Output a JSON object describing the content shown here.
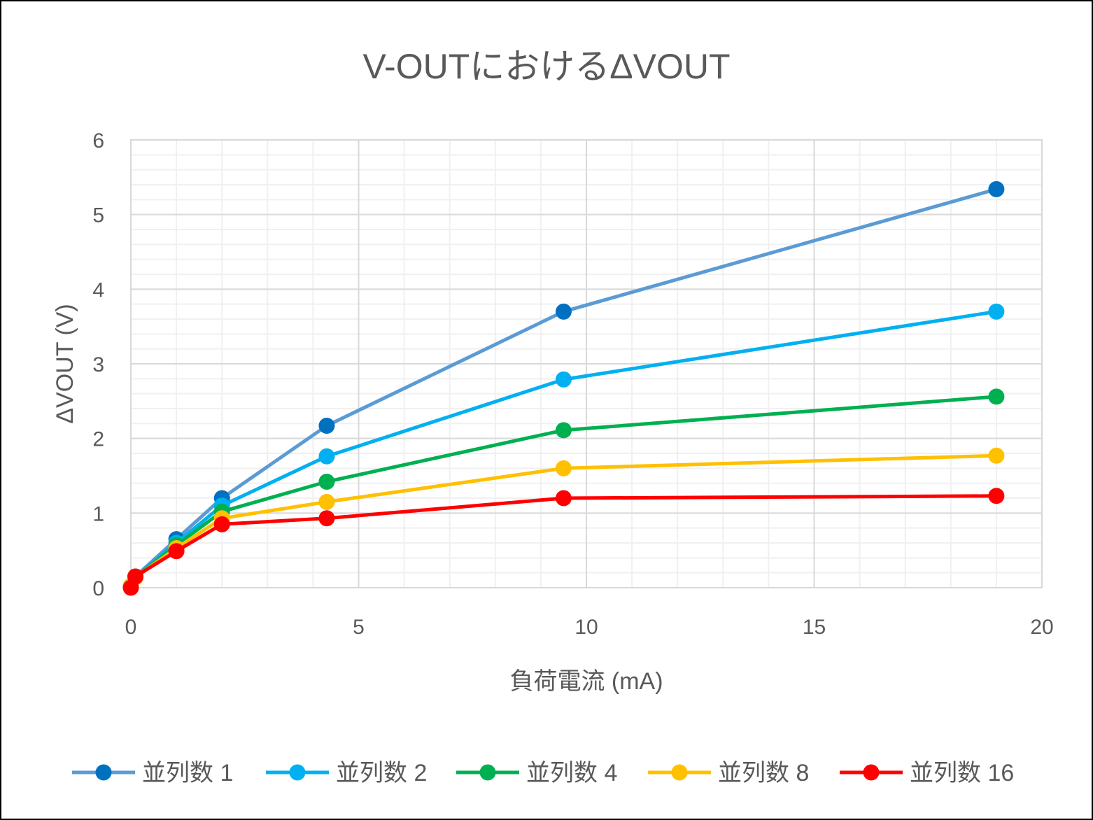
{
  "chart_data": {
    "type": "line",
    "title": "V-OUTにおけるΔVOUT",
    "xlabel": "負荷電流 (mA)",
    "ylabel": "ΔVOUT (V)",
    "xlim": [
      0,
      20
    ],
    "ylim": [
      0,
      6
    ],
    "x_ticks": [
      "0",
      "5",
      "10",
      "15",
      "20"
    ],
    "y_ticks": [
      "0",
      "1",
      "2",
      "3",
      "4",
      "5",
      "6"
    ],
    "grid": true,
    "legend_position": "bottom",
    "x": [
      0,
      0.1,
      1,
      2,
      4.3,
      9.5,
      19
    ],
    "series": [
      {
        "name": "並列数 1",
        "line_color": "#5B9BD5",
        "marker_color": "#0070C0",
        "values": [
          0.02,
          0.15,
          0.65,
          1.2,
          2.17,
          3.7,
          5.34
        ]
      },
      {
        "name": "並列数 2",
        "line_color": "#00B0F0",
        "marker_color": "#00B0F0",
        "values": [
          0.02,
          0.14,
          0.6,
          1.1,
          1.76,
          2.79,
          3.7
        ]
      },
      {
        "name": "並列数 4",
        "line_color": "#00B050",
        "marker_color": "#00B050",
        "values": [
          0.02,
          0.14,
          0.57,
          1.02,
          1.42,
          2.11,
          2.56
        ]
      },
      {
        "name": "並列数 8",
        "line_color": "#FFC000",
        "marker_color": "#FFC000",
        "values": [
          0.02,
          0.14,
          0.53,
          0.93,
          1.15,
          1.6,
          1.77
        ]
      },
      {
        "name": "並列数 16",
        "line_color": "#FF0000",
        "marker_color": "#FF0000",
        "values": [
          0.0,
          0.15,
          0.49,
          0.85,
          0.93,
          1.2,
          1.23
        ]
      }
    ]
  }
}
